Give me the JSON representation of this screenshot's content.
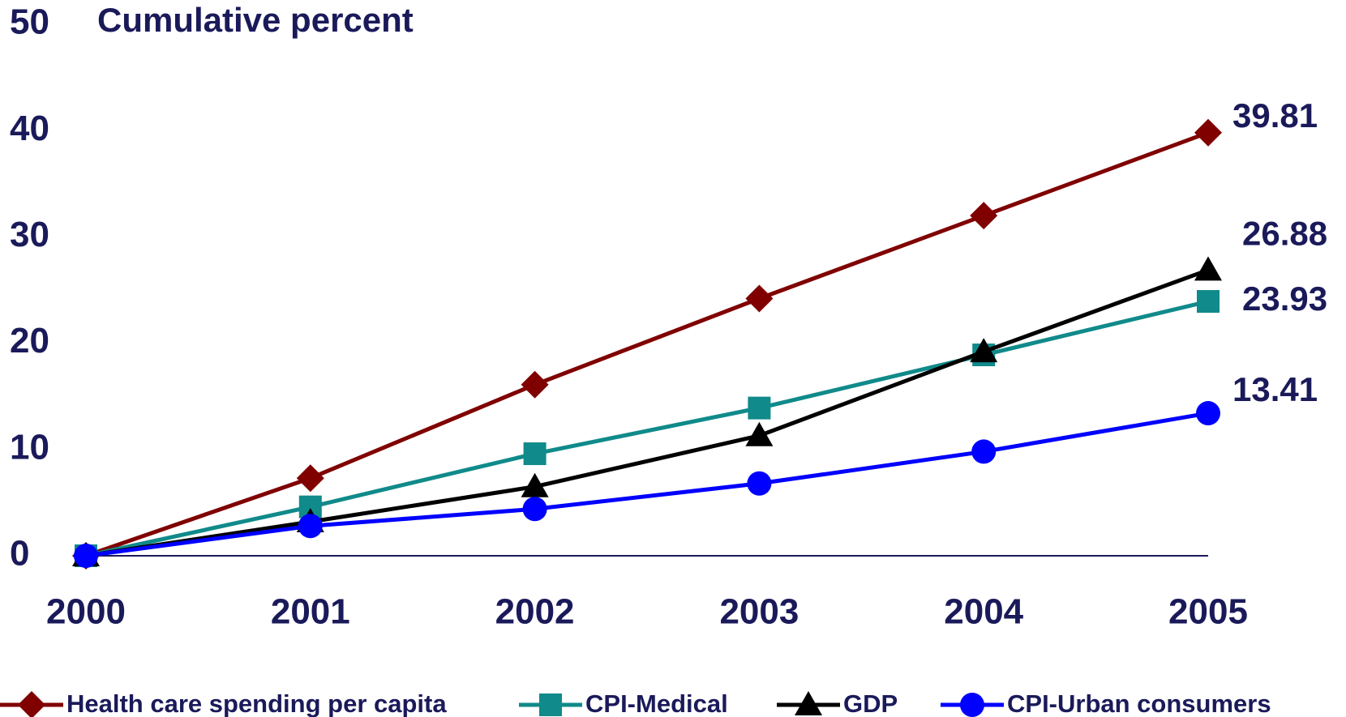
{
  "chart_data": {
    "type": "line",
    "title": "Cumulative percent",
    "x": [
      2000,
      2001,
      2002,
      2003,
      2004,
      2005
    ],
    "xlim": [
      2000,
      2005
    ],
    "xticks": [
      2000,
      2001,
      2002,
      2003,
      2004,
      2005
    ],
    "ylim": [
      0,
      50
    ],
    "yticks": [
      0,
      10,
      20,
      30,
      40,
      50
    ],
    "series": [
      {
        "name": "Health care spending per capita",
        "color": "#800000",
        "marker": "diamond",
        "values": [
          0,
          7.3,
          16.1,
          24.2,
          32.0,
          39.81
        ]
      },
      {
        "name": "CPI-Medical",
        "color": "#108a8a",
        "marker": "square",
        "values": [
          0,
          4.6,
          9.6,
          13.9,
          18.9,
          23.93
        ]
      },
      {
        "name": "GDP",
        "color": "#000000",
        "marker": "triangle",
        "values": [
          0,
          3.2,
          6.5,
          11.3,
          19.2,
          26.88
        ]
      },
      {
        "name": "CPI-Urban consumers",
        "color": "#0000ff",
        "marker": "circle",
        "values": [
          0,
          2.8,
          4.4,
          6.8,
          9.8,
          13.41
        ]
      }
    ]
  }
}
